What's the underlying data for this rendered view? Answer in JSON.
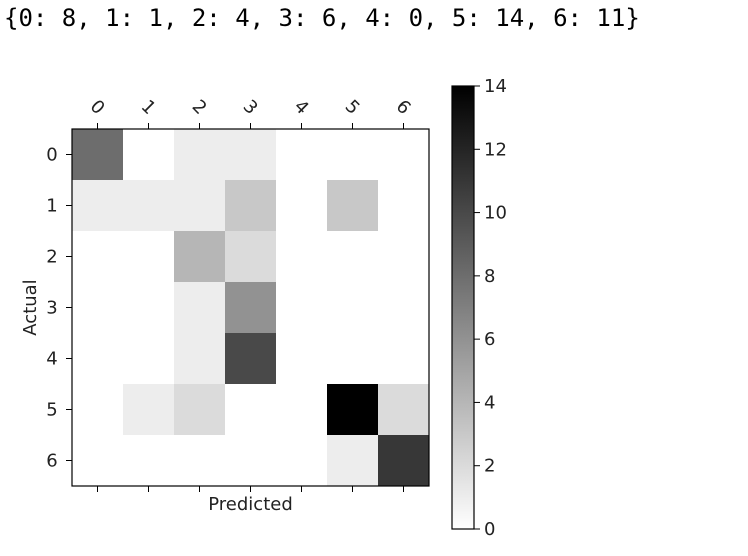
{
  "output_text": "{0: 8, 1: 1, 2: 4, 3: 6, 4: 0, 5: 14, 6: 11}",
  "chart_data": {
    "type": "heatmap",
    "xlabel": "Predicted",
    "ylabel": "Actual",
    "x_categories": [
      "0",
      "1",
      "2",
      "3",
      "4",
      "5",
      "6"
    ],
    "y_categories": [
      "0",
      "1",
      "2",
      "3",
      "4",
      "5",
      "6"
    ],
    "values": [
      [
        8,
        0,
        1,
        1,
        0,
        0,
        0
      ],
      [
        1,
        1,
        1,
        3,
        0,
        3,
        0
      ],
      [
        0,
        0,
        4,
        2,
        0,
        0,
        0
      ],
      [
        0,
        0,
        1,
        6,
        0,
        0,
        0
      ],
      [
        0,
        0,
        1,
        10,
        0,
        0,
        0
      ],
      [
        0,
        1,
        2,
        0,
        0,
        14,
        2
      ],
      [
        0,
        0,
        0,
        0,
        0,
        1,
        11
      ]
    ],
    "colormap": "Greys",
    "colorbar": {
      "min": 0,
      "max": 14,
      "ticks": [
        0,
        2,
        4,
        6,
        8,
        10,
        12,
        14
      ]
    },
    "grid": false
  }
}
